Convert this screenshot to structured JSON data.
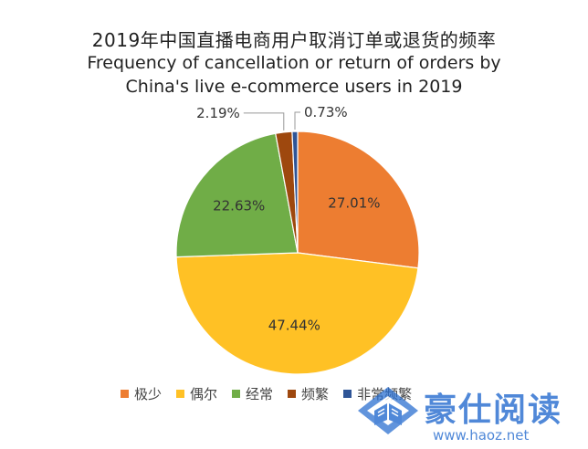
{
  "chart_data": {
    "type": "pie",
    "title": "2019年中国直播电商用户取消订单或退货的频率",
    "subtitle_line1": "Frequency of cancellation or return of orders by",
    "subtitle_line2": "China's live e-commerce users in 2019",
    "categories": [
      "极少",
      "偶尔",
      "经常",
      "频繁",
      "非常频繁"
    ],
    "values": [
      27.01,
      47.44,
      22.63,
      2.19,
      0.73
    ],
    "data_labels": [
      "27.01%",
      "47.44%",
      "22.63%",
      "2.19%",
      "0.73%"
    ],
    "colors": [
      "#ED7D31",
      "#FFC125",
      "#70AD47",
      "#9E480E",
      "#2F5597"
    ],
    "legend_position": "bottom"
  },
  "watermark": {
    "name": "豪仕阅读",
    "url": "www.haoz.net",
    "color": "#2a6fd0",
    "icon": "book-icon"
  }
}
